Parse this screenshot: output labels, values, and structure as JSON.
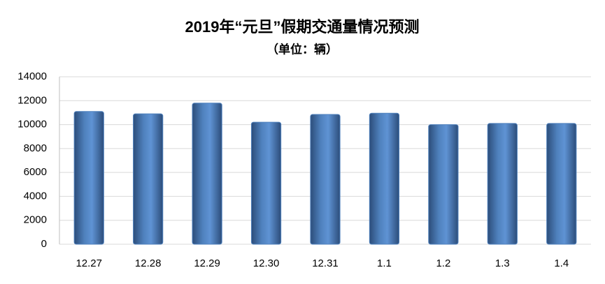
{
  "chart_data": {
    "type": "bar",
    "title": "2019年“元旦”假期交通量情况预测",
    "subtitle": "（单位：辆）",
    "categories": [
      "12.27",
      "12.28",
      "12.29",
      "12.30",
      "12.31",
      "1.1",
      "1.2",
      "1.3",
      "1.4"
    ],
    "values": [
      11100,
      10900,
      11800,
      10200,
      10850,
      10950,
      10000,
      10100,
      10100
    ],
    "color": "#4f81bd",
    "ylim": [
      0,
      14000
    ],
    "yticks": [
      0,
      2000,
      4000,
      6000,
      8000,
      10000,
      12000,
      14000
    ],
    "grid": true
  }
}
